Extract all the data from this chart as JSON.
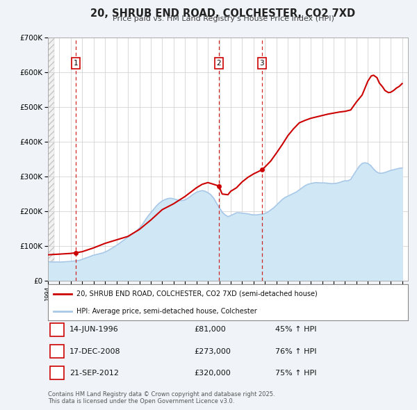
{
  "title": "20, SHRUB END ROAD, COLCHESTER, CO2 7XD",
  "subtitle": "Price paid vs. HM Land Registry's House Price Index (HPI)",
  "legend_line1": "20, SHRUB END ROAD, COLCHESTER, CO2 7XD (semi-detached house)",
  "legend_line2": "HPI: Average price, semi-detached house, Colchester",
  "footer": "Contains HM Land Registry data © Crown copyright and database right 2025.\nThis data is licensed under the Open Government Licence v3.0.",
  "sale_color": "#cc0000",
  "hpi_color": "#a8c8e8",
  "hpi_fill_color": "#d0e8f5",
  "background_color": "#f0f4f8",
  "plot_bg_color": "#ffffff",
  "ylim": [
    0,
    700000
  ],
  "yticks": [
    0,
    100000,
    200000,
    300000,
    400000,
    500000,
    600000,
    700000
  ],
  "ytick_labels": [
    "£0",
    "£100K",
    "£200K",
    "£300K",
    "£400K",
    "£500K",
    "£600K",
    "£700K"
  ],
  "xmin": 1994.0,
  "xmax": 2025.5,
  "transactions": [
    {
      "year": 1996.45,
      "price": 81000,
      "label": "1"
    },
    {
      "year": 2008.96,
      "price": 273000,
      "label": "2"
    },
    {
      "year": 2012.72,
      "price": 320000,
      "label": "3"
    }
  ],
  "table_entries": [
    {
      "num": "1",
      "date": "14-JUN-1996",
      "price": "£81,000",
      "pct": "45% ↑ HPI"
    },
    {
      "num": "2",
      "date": "17-DEC-2008",
      "price": "£273,000",
      "pct": "76% ↑ HPI"
    },
    {
      "num": "3",
      "date": "21-SEP-2012",
      "price": "£320,000",
      "pct": "75% ↑ HPI"
    }
  ],
  "hpi_years": [
    1994.0,
    1994.25,
    1994.5,
    1994.75,
    1995.0,
    1995.25,
    1995.5,
    1995.75,
    1996.0,
    1996.25,
    1996.5,
    1996.75,
    1997.0,
    1997.25,
    1997.5,
    1997.75,
    1998.0,
    1998.25,
    1998.5,
    1998.75,
    1999.0,
    1999.25,
    1999.5,
    1999.75,
    2000.0,
    2000.25,
    2000.5,
    2000.75,
    2001.0,
    2001.25,
    2001.5,
    2001.75,
    2002.0,
    2002.25,
    2002.5,
    2002.75,
    2003.0,
    2003.25,
    2003.5,
    2003.75,
    2004.0,
    2004.25,
    2004.5,
    2004.75,
    2005.0,
    2005.25,
    2005.5,
    2005.75,
    2006.0,
    2006.25,
    2006.5,
    2006.75,
    2007.0,
    2007.25,
    2007.5,
    2007.75,
    2008.0,
    2008.25,
    2008.5,
    2008.75,
    2009.0,
    2009.25,
    2009.5,
    2009.75,
    2010.0,
    2010.25,
    2010.5,
    2010.75,
    2011.0,
    2011.25,
    2011.5,
    2011.75,
    2012.0,
    2012.25,
    2012.5,
    2012.75,
    2013.0,
    2013.25,
    2013.5,
    2013.75,
    2014.0,
    2014.25,
    2014.5,
    2014.75,
    2015.0,
    2015.25,
    2015.5,
    2015.75,
    2016.0,
    2016.25,
    2016.5,
    2016.75,
    2017.0,
    2017.25,
    2017.5,
    2017.75,
    2018.0,
    2018.25,
    2018.5,
    2018.75,
    2019.0,
    2019.25,
    2019.5,
    2019.75,
    2020.0,
    2020.25,
    2020.5,
    2020.75,
    2021.0,
    2021.25,
    2021.5,
    2021.75,
    2022.0,
    2022.25,
    2022.5,
    2022.75,
    2023.0,
    2023.25,
    2023.5,
    2023.75,
    2024.0,
    2024.25,
    2024.5,
    2024.75,
    2025.0
  ],
  "hpi_values": [
    55000,
    54500,
    54000,
    54500,
    54000,
    54500,
    55000,
    55500,
    56000,
    57000,
    58000,
    59000,
    62000,
    65000,
    68000,
    71000,
    74000,
    76000,
    78000,
    80000,
    83000,
    87000,
    92000,
    97000,
    102000,
    108000,
    114000,
    120000,
    126000,
    132000,
    138000,
    144000,
    152000,
    162000,
    174000,
    186000,
    196000,
    206000,
    216000,
    224000,
    230000,
    234000,
    237000,
    238000,
    236000,
    234000,
    232000,
    231000,
    233000,
    238000,
    244000,
    250000,
    255000,
    258000,
    260000,
    258000,
    254000,
    248000,
    238000,
    224000,
    210000,
    198000,
    190000,
    185000,
    188000,
    192000,
    196000,
    196000,
    195000,
    194000,
    193000,
    191000,
    190000,
    190000,
    191000,
    192000,
    194000,
    198000,
    204000,
    210000,
    218000,
    226000,
    234000,
    240000,
    244000,
    248000,
    252000,
    256000,
    262000,
    268000,
    274000,
    278000,
    280000,
    282000,
    283000,
    282000,
    282000,
    282000,
    281000,
    280000,
    280000,
    281000,
    283000,
    286000,
    288000,
    288000,
    292000,
    305000,
    318000,
    330000,
    338000,
    340000,
    338000,
    332000,
    322000,
    314000,
    310000,
    310000,
    312000,
    315000,
    318000,
    320000,
    322000,
    324000,
    325000
  ],
  "price_years": [
    1994.0,
    1995.5,
    1996.0,
    1996.45,
    1997.0,
    1998.0,
    1999.0,
    2000.0,
    2001.0,
    2002.0,
    2003.0,
    2004.0,
    2005.0,
    2006.0,
    2007.0,
    2007.5,
    2008.0,
    2008.5,
    2008.96,
    2009.25,
    2009.75,
    2010.0,
    2010.5,
    2011.0,
    2011.5,
    2012.0,
    2012.5,
    2012.72,
    2013.0,
    2013.5,
    2014.0,
    2014.5,
    2015.0,
    2015.5,
    2016.0,
    2016.5,
    2017.0,
    2017.5,
    2018.0,
    2018.5,
    2019.0,
    2019.5,
    2020.0,
    2020.5,
    2021.0,
    2021.5,
    2022.0,
    2022.3,
    2022.5,
    2022.8,
    2023.0,
    2023.3,
    2023.5,
    2023.8,
    2024.0,
    2024.25,
    2024.5,
    2024.75,
    2025.0
  ],
  "price_values": [
    75000,
    78000,
    79000,
    81000,
    84000,
    95000,
    108000,
    118000,
    128000,
    148000,
    175000,
    205000,
    222000,
    243000,
    268000,
    278000,
    283000,
    278000,
    273000,
    250000,
    248000,
    258000,
    268000,
    285000,
    298000,
    308000,
    316000,
    320000,
    328000,
    345000,
    368000,
    392000,
    418000,
    438000,
    455000,
    462000,
    468000,
    472000,
    476000,
    480000,
    483000,
    486000,
    488000,
    492000,
    515000,
    535000,
    575000,
    590000,
    592000,
    585000,
    570000,
    558000,
    548000,
    542000,
    543000,
    548000,
    555000,
    560000,
    568000
  ]
}
